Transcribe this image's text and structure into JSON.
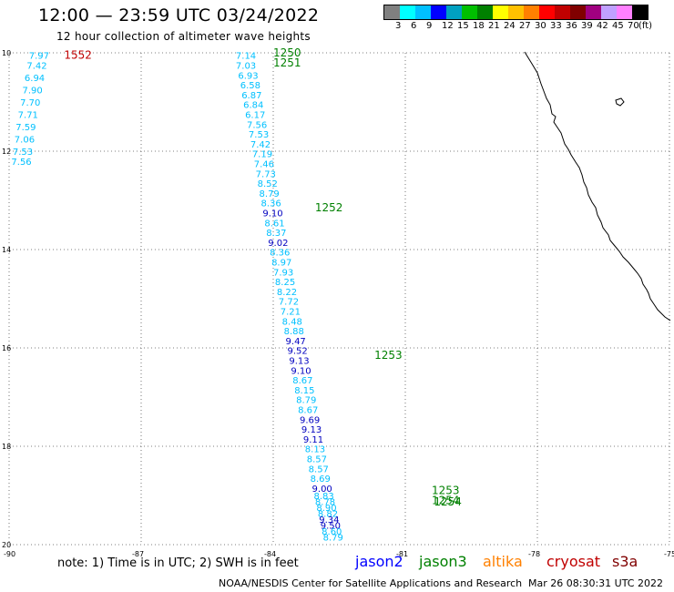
{
  "title": "12:00 — 23:59 UTC 03/24/2022",
  "subtitle": "12 hour collection of altimeter wave heights",
  "legend": {
    "colors": [
      "#808080",
      "#00ffff",
      "#00c0ff",
      "#0000ff",
      "#00a0c0",
      "#00c000",
      "#008000",
      "#ffff00",
      "#ffc000",
      "#ff8000",
      "#ff0000",
      "#c00000",
      "#800000",
      "#a00080",
      "#c0a0ff",
      "#ff80ff",
      "#000000"
    ],
    "labels": [
      "3",
      "6",
      "9",
      "12",
      "15",
      "18",
      "21",
      "24",
      "27",
      "30",
      "33",
      "36",
      "39",
      "42",
      "45",
      "70",
      "(ft)"
    ]
  },
  "axes": {
    "lon_labels": [
      "-90",
      "-87",
      "-84",
      "-81",
      "-78",
      "-75"
    ],
    "lat_labels": [
      "10",
      "12",
      "14",
      "16",
      "18",
      "20"
    ]
  },
  "chart_data": {
    "type": "scatter",
    "xlim": [
      -90,
      -75
    ],
    "ylim": [
      -20,
      -10
    ],
    "grid": true,
    "times": [
      {
        "label": "1552",
        "lon": -88.75,
        "lat": -10.05,
        "satellite": "cryosat"
      },
      {
        "label": "1250",
        "lon": -84.0,
        "lat": -10.0,
        "satellite": "jason3"
      },
      {
        "label": "1251",
        "lon": -84.0,
        "lat": -10.2,
        "satellite": "jason3"
      },
      {
        "label": "1252",
        "lon": -83.05,
        "lat": -13.15,
        "satellite": "jason3"
      },
      {
        "label": "1253",
        "lon": -81.7,
        "lat": -16.15,
        "satellite": "jason3"
      },
      {
        "label": "1253",
        "lon": -80.4,
        "lat": -18.9,
        "satellite": "jason3"
      },
      {
        "label": "1254",
        "lon": -80.4,
        "lat": -19.1,
        "satellite": "jason3"
      },
      {
        "label": "1254",
        "lon": -80.35,
        "lat": -19.13,
        "satellite": "jason3"
      }
    ],
    "series": [
      {
        "name": "jason2",
        "color": "#0000ff",
        "points": []
      },
      {
        "name": "jason3",
        "color": "#008000",
        "points": [
          {
            "lon": -84.85,
            "lat": -10.05,
            "v": "7.14",
            "c": "#00c0ff"
          },
          {
            "lon": -84.85,
            "lat": -10.25,
            "v": "7.03",
            "c": "#00c0ff"
          },
          {
            "lon": -84.8,
            "lat": -10.45,
            "v": "6.93",
            "c": "#00c0ff"
          },
          {
            "lon": -84.75,
            "lat": -10.65,
            "v": "6.58",
            "c": "#00c0ff"
          },
          {
            "lon": -84.72,
            "lat": -10.85,
            "v": "6.87",
            "c": "#00c0ff"
          },
          {
            "lon": -84.68,
            "lat": -11.05,
            "v": "6.84",
            "c": "#00c0ff"
          },
          {
            "lon": -84.64,
            "lat": -11.25,
            "v": "6.17",
            "c": "#00c0ff"
          },
          {
            "lon": -84.6,
            "lat": -11.45,
            "v": "7.56",
            "c": "#00c0ff"
          },
          {
            "lon": -84.56,
            "lat": -11.65,
            "v": "7.53",
            "c": "#00c0ff"
          },
          {
            "lon": -84.52,
            "lat": -11.85,
            "v": "7.42",
            "c": "#00c0ff"
          },
          {
            "lon": -84.48,
            "lat": -12.05,
            "v": "7.19",
            "c": "#00c0ff"
          },
          {
            "lon": -84.44,
            "lat": -12.25,
            "v": "7.46",
            "c": "#00c0ff"
          },
          {
            "lon": -84.4,
            "lat": -12.45,
            "v": "7.73",
            "c": "#00c0ff"
          },
          {
            "lon": -84.36,
            "lat": -12.65,
            "v": "8.52",
            "c": "#00c0ff"
          },
          {
            "lon": -84.32,
            "lat": -12.85,
            "v": "8.79",
            "c": "#00c0ff"
          },
          {
            "lon": -84.28,
            "lat": -13.05,
            "v": "8.36",
            "c": "#00c0ff"
          },
          {
            "lon": -84.24,
            "lat": -13.25,
            "v": "9.10",
            "c": "#0000c0"
          },
          {
            "lon": -84.2,
            "lat": -13.45,
            "v": "8.61",
            "c": "#00c0ff"
          },
          {
            "lon": -84.16,
            "lat": -13.65,
            "v": "8.37",
            "c": "#00c0ff"
          },
          {
            "lon": -84.12,
            "lat": -13.85,
            "v": "9.02",
            "c": "#0000c0"
          },
          {
            "lon": -84.08,
            "lat": -14.05,
            "v": "8.36",
            "c": "#00c0ff"
          },
          {
            "lon": -84.04,
            "lat": -14.25,
            "v": "8.97",
            "c": "#00c0ff"
          },
          {
            "lon": -84.0,
            "lat": -14.45,
            "v": "7.93",
            "c": "#00c0ff"
          },
          {
            "lon": -83.96,
            "lat": -14.65,
            "v": "8.25",
            "c": "#00c0ff"
          },
          {
            "lon": -83.92,
            "lat": -14.85,
            "v": "8.22",
            "c": "#00c0ff"
          },
          {
            "lon": -83.88,
            "lat": -15.05,
            "v": "7.72",
            "c": "#00c0ff"
          },
          {
            "lon": -83.84,
            "lat": -15.25,
            "v": "7.21",
            "c": "#00c0ff"
          },
          {
            "lon": -83.8,
            "lat": -15.45,
            "v": "8.48",
            "c": "#00c0ff"
          },
          {
            "lon": -83.76,
            "lat": -15.65,
            "v": "8.88",
            "c": "#00c0ff"
          },
          {
            "lon": -83.72,
            "lat": -15.85,
            "v": "9.47",
            "c": "#0000c0"
          },
          {
            "lon": -83.68,
            "lat": -16.05,
            "v": "9.52",
            "c": "#0000c0"
          },
          {
            "lon": -83.64,
            "lat": -16.25,
            "v": "9.13",
            "c": "#0000c0"
          },
          {
            "lon": -83.6,
            "lat": -16.45,
            "v": "9.10",
            "c": "#0000c0"
          },
          {
            "lon": -83.56,
            "lat": -16.65,
            "v": "8.67",
            "c": "#00c0ff"
          },
          {
            "lon": -83.52,
            "lat": -16.85,
            "v": "8.15",
            "c": "#00c0ff"
          },
          {
            "lon": -83.48,
            "lat": -17.05,
            "v": "8.79",
            "c": "#00c0ff"
          },
          {
            "lon": -83.44,
            "lat": -17.25,
            "v": "8.67",
            "c": "#00c0ff"
          },
          {
            "lon": -83.4,
            "lat": -17.45,
            "v": "9.69",
            "c": "#0000c0"
          },
          {
            "lon": -83.36,
            "lat": -17.65,
            "v": "9.13",
            "c": "#0000c0"
          },
          {
            "lon": -83.32,
            "lat": -17.85,
            "v": "9.11",
            "c": "#0000c0"
          },
          {
            "lon": -83.28,
            "lat": -18.05,
            "v": "8.13",
            "c": "#00c0ff"
          },
          {
            "lon": -83.24,
            "lat": -18.25,
            "v": "8.57",
            "c": "#00c0ff"
          },
          {
            "lon": -83.2,
            "lat": -18.45,
            "v": "8.57",
            "c": "#00c0ff"
          },
          {
            "lon": -83.16,
            "lat": -18.65,
            "v": "8.69",
            "c": "#00c0ff"
          },
          {
            "lon": -83.12,
            "lat": -18.85,
            "v": "9.00",
            "c": "#0000c0"
          },
          {
            "lon": -83.08,
            "lat": -19.0,
            "v": "8.83",
            "c": "#00c0ff"
          },
          {
            "lon": -83.05,
            "lat": -19.12,
            "v": "8.78",
            "c": "#00c0ff"
          },
          {
            "lon": -83.02,
            "lat": -19.24,
            "v": "8.90",
            "c": "#00c0ff"
          },
          {
            "lon": -82.99,
            "lat": -19.36,
            "v": "8.82",
            "c": "#00c0ff"
          },
          {
            "lon": -82.96,
            "lat": -19.48,
            "v": "9.34",
            "c": "#0000c0"
          },
          {
            "lon": -82.93,
            "lat": -19.6,
            "v": "9.50",
            "c": "#0000c0"
          },
          {
            "lon": -82.9,
            "lat": -19.72,
            "v": "8.60",
            "c": "#00c0ff"
          },
          {
            "lon": -82.87,
            "lat": -19.84,
            "v": "8.79",
            "c": "#00c0ff"
          }
        ]
      },
      {
        "name": "altika",
        "color": "#ff8000",
        "points": []
      },
      {
        "name": "cryosat",
        "color": "#c00000",
        "points": [
          {
            "lon": -89.55,
            "lat": -10.05,
            "v": "7.97",
            "c": "#00c0ff"
          },
          {
            "lon": -89.6,
            "lat": -10.25,
            "v": "7.42",
            "c": "#00c0ff"
          },
          {
            "lon": -89.65,
            "lat": -10.5,
            "v": "6.94",
            "c": "#00c0ff"
          },
          {
            "lon": -89.7,
            "lat": -10.75,
            "v": "7.90",
            "c": "#00c0ff"
          },
          {
            "lon": -89.75,
            "lat": -11.0,
            "v": "7.70",
            "c": "#00c0ff"
          },
          {
            "lon": -89.8,
            "lat": -11.25,
            "v": "7.71",
            "c": "#00c0ff"
          },
          {
            "lon": -89.85,
            "lat": -11.5,
            "v": "7.59",
            "c": "#00c0ff"
          },
          {
            "lon": -89.88,
            "lat": -11.75,
            "v": "7.06",
            "c": "#00c0ff"
          },
          {
            "lon": -89.92,
            "lat": -12.0,
            "v": "7.53",
            "c": "#00c0ff"
          },
          {
            "lon": -89.95,
            "lat": -12.2,
            "v": "7.56",
            "c": "#00c0ff"
          }
        ]
      },
      {
        "name": "s3a",
        "color": "#800000",
        "points": []
      }
    ]
  },
  "note": "note:  1) Time is in UTC; 2) SWH is in feet",
  "satellites": [
    {
      "name": "jason2",
      "color": "#0000ff"
    },
    {
      "name": "jason3",
      "color": "#008000"
    },
    {
      "name": "altika",
      "color": "#ff8000"
    },
    {
      "name": "cryosat",
      "color": "#c00000"
    },
    {
      "name": "s3a",
      "color": "#800000"
    }
  ],
  "credit": "NOAA/NESDIS Center for Satellite Applications and Research",
  "timestamp": "Mar 26 08:30:31 UTC 2022"
}
